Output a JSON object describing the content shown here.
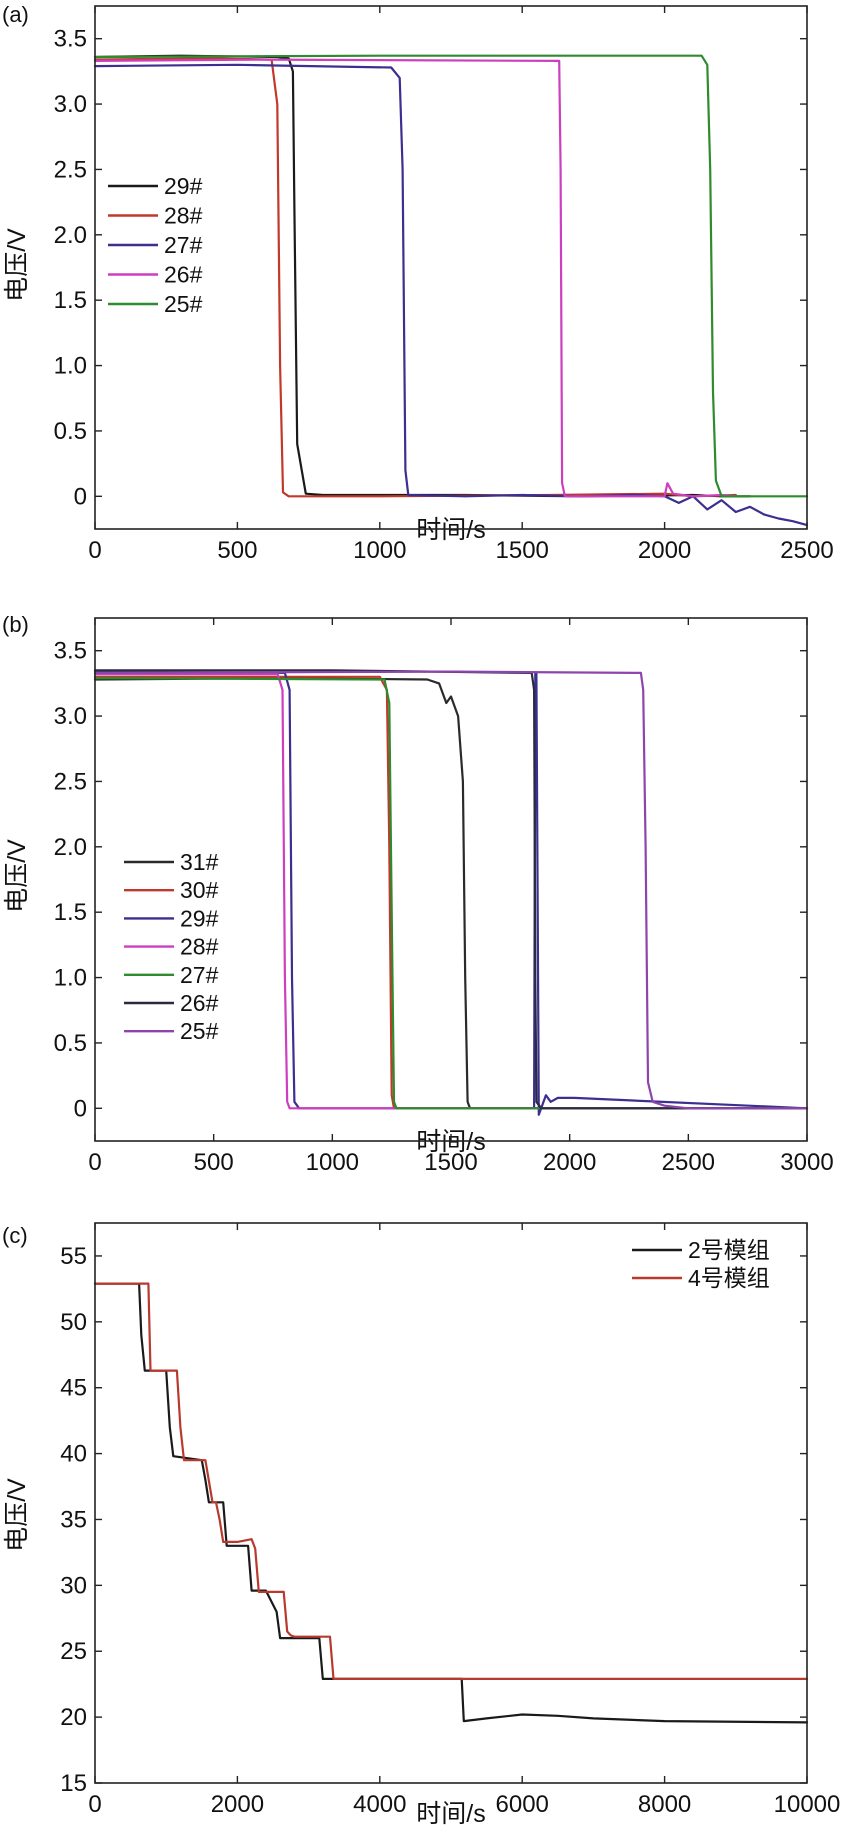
{
  "chart_data": [
    {
      "panel": "(a)",
      "type": "line",
      "xlabel": "时间/s",
      "ylabel": "电压/V",
      "xlim": [
        0,
        2500
      ],
      "ylim": [
        -0.25,
        3.75
      ],
      "xticks": [
        0,
        500,
        1000,
        1500,
        2000,
        2500
      ],
      "yticks": [
        0,
        0.5,
        1.0,
        1.5,
        2.0,
        2.5,
        3.0,
        3.5
      ],
      "ytick_labels": [
        "0",
        "0.5",
        "1.0",
        "1.5",
        "2.0",
        "2.5",
        "3.0",
        "3.5"
      ],
      "legend_position": "middle-left",
      "series": [
        {
          "name": "29#",
          "color": "#1a1a1a",
          "x": [
            0,
            300,
            640,
            680,
            695,
            700,
            710,
            740,
            800,
            1300,
            1700,
            2100,
            2200,
            2300
          ],
          "y": [
            3.36,
            3.37,
            3.36,
            3.35,
            3.25,
            2.2,
            0.4,
            0.02,
            0.01,
            0.01,
            0.0,
            0.01,
            0.0,
            0.0
          ]
        },
        {
          "name": "28#",
          "color": "#c0392b",
          "x": [
            0,
            400,
            620,
            640,
            650,
            660,
            680,
            1000,
            1600,
            2000,
            2100,
            2250
          ],
          "y": [
            3.34,
            3.35,
            3.34,
            3.0,
            1.0,
            0.03,
            0.0,
            0.0,
            0.01,
            0.02,
            0.0,
            0.01
          ]
        },
        {
          "name": "27#",
          "color": "#3b2f8f",
          "x": [
            0,
            500,
            1040,
            1070,
            1080,
            1090,
            1100,
            1300,
            1500,
            1700,
            1900,
            2000,
            2050,
            2100,
            2150,
            2200,
            2250,
            2300,
            2350,
            2400,
            2450,
            2500
          ],
          "y": [
            3.29,
            3.3,
            3.28,
            3.2,
            2.5,
            0.2,
            0.01,
            0.0,
            0.01,
            0.0,
            0.01,
            0.0,
            -0.05,
            0.0,
            -0.1,
            -0.03,
            -0.12,
            -0.08,
            -0.14,
            -0.17,
            -0.19,
            -0.22
          ]
        },
        {
          "name": "26#",
          "color": "#cc3fbf",
          "x": [
            0,
            600,
            1630,
            1635,
            1640,
            1650,
            1800,
            2000,
            2010,
            2030,
            2100,
            2200,
            2250
          ],
          "y": [
            3.33,
            3.34,
            3.33,
            2.5,
            0.1,
            0.0,
            0.0,
            0.0,
            0.1,
            0.02,
            0.0,
            0.01,
            0.0
          ]
        },
        {
          "name": "25#",
          "color": "#2e8b2e",
          "x": [
            0,
            1000,
            2130,
            2150,
            2160,
            2170,
            2180,
            2200,
            2500
          ],
          "y": [
            3.36,
            3.37,
            3.37,
            3.3,
            2.5,
            0.8,
            0.12,
            0.0,
            0.0
          ]
        }
      ]
    },
    {
      "panel": "(b)",
      "type": "line",
      "xlabel": "时间/s",
      "ylabel": "电压/V",
      "xlim": [
        0,
        3000
      ],
      "ylim": [
        -0.25,
        3.75
      ],
      "xticks": [
        0,
        500,
        1000,
        1500,
        2000,
        2500,
        3000
      ],
      "yticks": [
        0,
        0.5,
        1.0,
        1.5,
        2.0,
        2.5,
        3.0,
        3.5
      ],
      "ytick_labels": [
        "0",
        "0.5",
        "1.0",
        "1.5",
        "2.0",
        "2.5",
        "3.0",
        "3.5"
      ],
      "legend_position": "middle-left",
      "series": [
        {
          "name": "31#",
          "color": "#2a2a2a",
          "x": [
            0,
            800,
            1400,
            1450,
            1480,
            1500,
            1530,
            1550,
            1560,
            1570,
            1580,
            1700,
            3000
          ],
          "y": [
            3.28,
            3.29,
            3.28,
            3.25,
            3.1,
            3.15,
            3.0,
            2.5,
            1.0,
            0.05,
            0.0,
            0.0,
            0.0
          ]
        },
        {
          "name": "30#",
          "color": "#c0392b",
          "x": [
            0,
            1200,
            1230,
            1240,
            1250,
            1260,
            3000
          ],
          "y": [
            3.3,
            3.3,
            3.2,
            2.0,
            0.1,
            0.0,
            0.0
          ]
        },
        {
          "name": "29#",
          "color": "#3b2f8f",
          "x": [
            0,
            800,
            820,
            830,
            840,
            860,
            1800,
            1850,
            1855,
            1860,
            1870,
            1900,
            1920,
            1950,
            2020,
            3000
          ],
          "y": [
            3.34,
            3.33,
            3.2,
            1.0,
            0.05,
            0.0,
            0.0,
            0.0,
            3.33,
            3.33,
            -0.05,
            0.1,
            0.05,
            0.08,
            0.08,
            0.0
          ]
        },
        {
          "name": "28#",
          "color": "#cc3fbf",
          "x": [
            0,
            770,
            790,
            800,
            810,
            820,
            3000
          ],
          "y": [
            3.32,
            3.32,
            3.2,
            1.0,
            0.05,
            0.0,
            0.0
          ]
        },
        {
          "name": "27#",
          "color": "#2e8b2e",
          "x": [
            0,
            1220,
            1240,
            1250,
            1260,
            1270,
            3000
          ],
          "y": [
            3.29,
            3.28,
            3.1,
            1.5,
            0.05,
            0.0,
            0.0
          ]
        },
        {
          "name": "26#",
          "color": "#2b2b3f",
          "x": [
            0,
            1000,
            1840,
            1850,
            1855,
            1860,
            1880,
            3000
          ],
          "y": [
            3.35,
            3.35,
            3.33,
            3.2,
            1.0,
            0.05,
            0.0,
            0.0
          ]
        },
        {
          "name": "25#",
          "color": "#8e44ad",
          "x": [
            0,
            1500,
            2300,
            2310,
            2320,
            2330,
            2350,
            2400,
            2500,
            3000
          ],
          "y": [
            3.33,
            3.34,
            3.33,
            3.2,
            2.0,
            0.2,
            0.05,
            0.02,
            0.0,
            0.0
          ]
        }
      ]
    },
    {
      "panel": "(c)",
      "type": "line",
      "xlabel": "时间/s",
      "ylabel": "电压/V",
      "xlim": [
        0,
        10000
      ],
      "ylim": [
        15,
        57.5
      ],
      "xticks": [
        0,
        2000,
        4000,
        6000,
        8000,
        10000
      ],
      "yticks": [
        15,
        20,
        25,
        30,
        35,
        40,
        45,
        50,
        55
      ],
      "ytick_labels": [
        "15",
        "20",
        "25",
        "30",
        "35",
        "40",
        "45",
        "50",
        "55"
      ],
      "legend_position": "top-right",
      "series": [
        {
          "name": "2号模组",
          "color": "#1a1a1a",
          "x": [
            0,
            620,
            650,
            700,
            1000,
            1050,
            1100,
            1500,
            1550,
            1600,
            1800,
            1850,
            1900,
            2000,
            2150,
            2200,
            2300,
            2400,
            2550,
            2600,
            2700,
            3150,
            3200,
            5150,
            5180,
            5500,
            6000,
            6500,
            7000,
            8000,
            10000
          ],
          "y": [
            52.9,
            52.9,
            49.0,
            46.3,
            46.3,
            42.0,
            39.8,
            39.5,
            38.0,
            36.3,
            36.3,
            33.0,
            33.0,
            33.0,
            33.0,
            29.6,
            29.6,
            29.6,
            28.0,
            26.0,
            26.0,
            26.0,
            22.9,
            22.9,
            19.7,
            19.9,
            20.2,
            20.1,
            19.9,
            19.7,
            19.6
          ]
        },
        {
          "name": "4号模组",
          "color": "#b83a2e",
          "x": [
            0,
            750,
            780,
            1150,
            1200,
            1250,
            1550,
            1650,
            1700,
            1750,
            1800,
            2000,
            2200,
            2250,
            2300,
            2350,
            2500,
            2650,
            2700,
            2750,
            2800,
            3300,
            3350,
            10000
          ],
          "y": [
            52.9,
            52.9,
            46.3,
            46.3,
            42.0,
            39.5,
            39.5,
            36.3,
            36.3,
            35.0,
            33.3,
            33.3,
            33.5,
            32.8,
            29.5,
            29.5,
            29.5,
            29.5,
            26.5,
            26.2,
            26.1,
            26.1,
            22.9,
            22.9
          ]
        }
      ]
    }
  ]
}
